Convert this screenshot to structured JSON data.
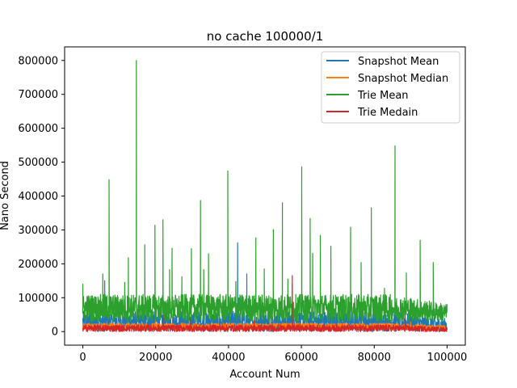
{
  "chart_data": {
    "type": "line",
    "title": "no cache 100000/1",
    "xlabel": "Account Num",
    "ylabel": "Nano Second",
    "xlim": [
      -5000,
      105000
    ],
    "ylim": [
      -40000,
      840000
    ],
    "xticks": [
      0,
      20000,
      40000,
      60000,
      80000,
      100000
    ],
    "yticks": [
      0,
      100000,
      200000,
      300000,
      400000,
      500000,
      600000,
      700000,
      800000
    ],
    "xtick_labels": [
      "0",
      "20000",
      "40000",
      "60000",
      "80000",
      "100000"
    ],
    "ytick_labels": [
      "0",
      "100000",
      "200000",
      "300000",
      "400000",
      "500000",
      "600000",
      "700000",
      "800000"
    ],
    "grid": false,
    "legend_position": "top-right",
    "series": [
      {
        "name": "Snapshot Mean",
        "color": "#1f77b4",
        "band": [
          0,
          60000
        ],
        "spikes": [
          [
            6000,
            150000
          ],
          [
            42500,
            262000
          ],
          [
            45000,
            170000
          ],
          [
            57500,
            140000
          ]
        ]
      },
      {
        "name": "Snapshot Median",
        "color": "#ff7f0e",
        "band": [
          5000,
          25000
        ],
        "spikes": [
          [
            20000,
            35000
          ],
          [
            47000,
            32000
          ],
          [
            57500,
            60000
          ],
          [
            76000,
            30000
          ],
          [
            90000,
            28000
          ]
        ]
      },
      {
        "name": "Trie Mean",
        "color": "#2ca02c",
        "band": [
          30000,
          110000
        ],
        "spikes": [
          [
            0,
            140000
          ],
          [
            5500,
            170000
          ],
          [
            7200,
            448000
          ],
          [
            11500,
            145000
          ],
          [
            12500,
            218000
          ],
          [
            14700,
            800000
          ],
          [
            17000,
            256000
          ],
          [
            19800,
            314000
          ],
          [
            22000,
            330000
          ],
          [
            23800,
            183000
          ],
          [
            24500,
            246000
          ],
          [
            27200,
            162000
          ],
          [
            29800,
            245000
          ],
          [
            32300,
            387000
          ],
          [
            33200,
            183000
          ],
          [
            34500,
            230000
          ],
          [
            39800,
            474000
          ],
          [
            42000,
            148000
          ],
          [
            47500,
            277000
          ],
          [
            49800,
            185000
          ],
          [
            52300,
            301000
          ],
          [
            54800,
            380000
          ],
          [
            56300,
            155000
          ],
          [
            60100,
            486000
          ],
          [
            62400,
            334000
          ],
          [
            63100,
            231000
          ],
          [
            65200,
            284000
          ],
          [
            68100,
            252000
          ],
          [
            73500,
            308000
          ],
          [
            76400,
            204000
          ],
          [
            79200,
            365000
          ],
          [
            82800,
            128000
          ],
          [
            85700,
            548000
          ],
          [
            88800,
            173000
          ],
          [
            92600,
            269000
          ],
          [
            96200,
            204000
          ]
        ]
      },
      {
        "name": "Trie Medain",
        "color": "#d62728",
        "band": [
          0,
          20000
        ],
        "spikes": [
          [
            22000,
            50000
          ],
          [
            29500,
            40000
          ],
          [
            47000,
            30000
          ],
          [
            57500,
            165000
          ],
          [
            88500,
            48000
          ]
        ]
      }
    ]
  }
}
